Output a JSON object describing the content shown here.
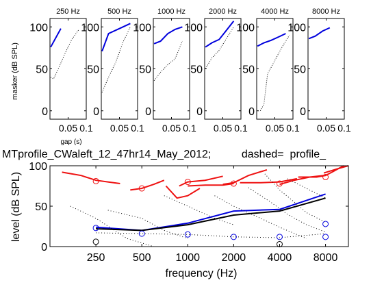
{
  "title": "MTprofile_CWaleft_12_47hr14_May_2012;          dashed=  profile_",
  "chart_data": [
    {
      "type": "line",
      "panels": [
        {
          "title": "250 Hz",
          "blue": [
            [
              0.002,
              76
            ],
            [
              0.03,
              98
            ]
          ],
          "dotted": [
            [
              0.002,
              40
            ],
            [
              0.01,
              38
            ],
            [
              0.025,
              52
            ],
            [
              0.04,
              67
            ],
            [
              0.06,
              85
            ],
            [
              0.08,
              97
            ]
          ]
        },
        {
          "title": "500 Hz",
          "blue": [
            [
              0.002,
              71
            ],
            [
              0.02,
              92
            ],
            [
              0.05,
              98
            ],
            [
              0.08,
              104
            ]
          ],
          "dotted": [
            [
              0.002,
              22
            ],
            [
              0.02,
              40
            ],
            [
              0.04,
              58
            ],
            [
              0.06,
              82
            ],
            [
              0.08,
              100
            ]
          ]
        },
        {
          "title": "1000 Hz",
          "blue": [
            [
              0.002,
              80
            ],
            [
              0.02,
              83
            ],
            [
              0.04,
              92
            ],
            [
              0.06,
              97
            ],
            [
              0.08,
              100
            ]
          ],
          "dotted": [
            [
              0.002,
              36
            ],
            [
              0.02,
              46
            ],
            [
              0.04,
              55
            ],
            [
              0.06,
              62
            ],
            [
              0.08,
              83
            ]
          ]
        },
        {
          "title": "2000 Hz",
          "blue": [
            [
              0.002,
              76
            ],
            [
              0.02,
              81
            ],
            [
              0.04,
              85
            ],
            [
              0.06,
              96
            ],
            [
              0.08,
              107
            ]
          ],
          "dotted": [
            [
              0.002,
              50
            ],
            [
              0.02,
              63
            ],
            [
              0.04,
              72
            ],
            [
              0.06,
              86
            ],
            [
              0.08,
              100
            ]
          ]
        },
        {
          "title": "4000 Hz",
          "blue": [
            [
              0.002,
              77
            ],
            [
              0.02,
              81
            ],
            [
              0.04,
              84
            ],
            [
              0.06,
              88
            ],
            [
              0.08,
              92
            ]
          ],
          "dotted": [
            [
              0.01,
              0
            ],
            [
              0.02,
              8
            ],
            [
              0.03,
              44
            ],
            [
              0.05,
              60
            ],
            [
              0.07,
              76
            ],
            [
              0.09,
              90
            ]
          ]
        },
        {
          "title": "8000 Hz",
          "blue": [
            [
              0.002,
              86
            ],
            [
              0.02,
              89
            ],
            [
              0.04,
              95
            ],
            [
              0.06,
              99
            ]
          ],
          "dotted": []
        }
      ],
      "ylabel": "masker (dB SPL)",
      "xlabel": "gap (s)",
      "xticks": [
        "0.05",
        "0.1"
      ],
      "yticks": [
        "0",
        "50",
        "100"
      ],
      "xlim": [
        0,
        0.1
      ],
      "ylim": [
        -10,
        110
      ]
    },
    {
      "type": "line",
      "xscale": "log",
      "xlabel": "frequency (Hz)",
      "ylabel": "level (dB SPL)",
      "xlim": [
        125,
        11300
      ],
      "ylim": [
        0,
        100
      ],
      "xticks": [
        "250",
        "500",
        "1000",
        "2000",
        "4000",
        "8000"
      ],
      "yticks": [
        "0",
        "50",
        "100"
      ],
      "series": [
        {
          "color": "#0000dd",
          "style": "solid",
          "points": [
            [
              250,
              24
            ],
            [
              500,
              20
            ],
            [
              1000,
              29
            ],
            [
              2000,
              44
            ],
            [
              4000,
              46
            ],
            [
              8000,
              65
            ]
          ]
        },
        {
          "color": "#000000",
          "style": "solid",
          "points": [
            [
              250,
              22
            ],
            [
              500,
              20
            ],
            [
              1000,
              27
            ],
            [
              2000,
              39
            ],
            [
              4000,
              44
            ],
            [
              8000,
              60
            ]
          ]
        },
        {
          "color": "#ee1111",
          "style": "solid",
          "segments": [
            [
              [
                150,
                92
              ],
              [
                200,
                88
              ],
              [
                250,
                82
              ],
              [
                300,
                80
              ],
              [
                360,
                78
              ]
            ],
            [
              [
                420,
                70
              ],
              [
                500,
                72
              ],
              [
                600,
                77
              ],
              [
                700,
                82
              ]
            ],
            [
              [
                720,
                75
              ],
              [
                850,
                60
              ],
              [
                1000,
                63
              ],
              [
                1200,
                72
              ]
            ],
            [
              [
                880,
                75
              ],
              [
                1000,
                80
              ],
              [
                1300,
                82
              ],
              [
                1700,
                87
              ]
            ],
            [
              [
                1000,
                75
              ],
              [
                1300,
                76
              ],
              [
                1700,
                76
              ],
              [
                2000,
                78
              ]
            ],
            [
              [
                1700,
                77
              ],
              [
                2000,
                79
              ],
              [
                2500,
                88
              ],
              [
                3300,
                95
              ]
            ],
            [
              [
                2200,
                79
              ],
              [
                3000,
                79
              ],
              [
                4000,
                80
              ],
              [
                5200,
                84
              ]
            ],
            [
              [
                4000,
                77
              ],
              [
                5000,
                82
              ],
              [
                6300,
                86
              ],
              [
                7800,
                88
              ]
            ],
            [
              [
                5300,
                86
              ],
              [
                7000,
                86
              ],
              [
                8000,
                88
              ],
              [
                9000,
                93
              ],
              [
                10500,
                100
              ]
            ],
            [
              [
                7800,
                91
              ],
              [
                9500,
                96
              ],
              [
                11300,
                100
              ]
            ]
          ]
        },
        {
          "color": "#000000",
          "style": "dotted",
          "segments": [
            [
              [
                170,
                50
              ],
              [
                250,
                35
              ],
              [
                400,
                10
              ],
              [
                600,
                0
              ]
            ],
            [
              [
                250,
                17
              ],
              [
                500,
                16
              ],
              [
                1000,
                15
              ],
              [
                2000,
                12
              ],
              [
                4000,
                11
              ],
              [
                8000,
                16
              ]
            ],
            [
              [
                300,
                45
              ],
              [
                500,
                35
              ],
              [
                700,
                20
              ],
              [
                1000,
                10
              ]
            ],
            [
              [
                700,
                63
              ],
              [
                1000,
                50
              ],
              [
                1500,
                35
              ],
              [
                2000,
                27
              ]
            ],
            [
              [
                1500,
                63
              ],
              [
                2000,
                50
              ],
              [
                3000,
                35
              ],
              [
                4000,
                24
              ],
              [
                6000,
                10
              ]
            ],
            [
              [
                2500,
                73
              ],
              [
                3500,
                55
              ],
              [
                4500,
                40
              ],
              [
                6000,
                27
              ],
              [
                8000,
                18
              ]
            ],
            [
              [
                3200,
                90
              ],
              [
                4000,
                70
              ],
              [
                5000,
                55
              ],
              [
                6000,
                42
              ],
              [
                8000,
                30
              ]
            ],
            [
              [
                4500,
                84
              ],
              [
                6000,
                72
              ],
              [
                8000,
                60
              ]
            ]
          ]
        }
      ],
      "markers": [
        {
          "color": "#ee1111",
          "points": [
            [
              250,
              81
            ],
            [
              500,
              72
            ],
            [
              1000,
              80
            ],
            [
              2000,
              78
            ],
            [
              4000,
              78
            ],
            [
              8000,
              86
            ]
          ]
        },
        {
          "color": "#0000dd",
          "points": [
            [
              250,
              23
            ],
            [
              500,
              16
            ],
            [
              1000,
              15
            ],
            [
              2000,
              12
            ],
            [
              4000,
              12
            ],
            [
              8000,
              28
            ],
            [
              8000,
              12
            ]
          ]
        },
        {
          "color": "#000000",
          "points": [
            [
              250,
              6
            ],
            [
              4000,
              3
            ]
          ]
        }
      ]
    }
  ]
}
